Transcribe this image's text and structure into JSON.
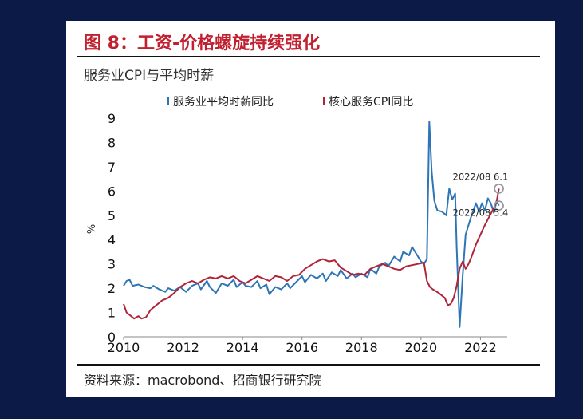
{
  "figure": {
    "title": "图 8：工资-价格螺旋持续强化",
    "chart_title": "服务业CPI与平均时薪",
    "source": "资料来源：macrobond、招商银行研究院"
  },
  "chart_data": {
    "type": "line",
    "title": "服务业CPI与平均时薪",
    "xlabel": "",
    "ylabel": "%",
    "xlim": [
      2010,
      2022.9
    ],
    "ylim": [
      0,
      9
    ],
    "x_ticks": [
      "2010",
      "2012",
      "2014",
      "2016",
      "2018",
      "2020",
      "2022"
    ],
    "y_ticks": [
      "0",
      "1",
      "2",
      "3",
      "4",
      "5",
      "6",
      "7",
      "8",
      "9"
    ],
    "legend_position": "top",
    "series": [
      {
        "name": "服务业平均时薪同比",
        "color": "#2e75b6",
        "points": [
          [
            2010.0,
            2.1
          ],
          [
            2010.1,
            2.3
          ],
          [
            2010.2,
            2.35
          ],
          [
            2010.3,
            2.1
          ],
          [
            2010.5,
            2.15
          ],
          [
            2010.7,
            2.05
          ],
          [
            2010.9,
            2.0
          ],
          [
            2011.0,
            2.1
          ],
          [
            2011.2,
            1.95
          ],
          [
            2011.4,
            1.85
          ],
          [
            2011.5,
            2.0
          ],
          [
            2011.7,
            1.9
          ],
          [
            2011.9,
            2.05
          ],
          [
            2012.1,
            1.85
          ],
          [
            2012.3,
            2.1
          ],
          [
            2012.5,
            2.2
          ],
          [
            2012.6,
            1.95
          ],
          [
            2012.8,
            2.3
          ],
          [
            2012.9,
            2.05
          ],
          [
            2013.1,
            1.8
          ],
          [
            2013.3,
            2.2
          ],
          [
            2013.5,
            2.1
          ],
          [
            2013.7,
            2.35
          ],
          [
            2013.8,
            2.05
          ],
          [
            2014.0,
            2.25
          ],
          [
            2014.1,
            2.1
          ],
          [
            2014.3,
            2.05
          ],
          [
            2014.5,
            2.3
          ],
          [
            2014.6,
            2.0
          ],
          [
            2014.8,
            2.15
          ],
          [
            2014.9,
            1.75
          ],
          [
            2015.1,
            2.05
          ],
          [
            2015.3,
            1.95
          ],
          [
            2015.5,
            2.2
          ],
          [
            2015.6,
            2.0
          ],
          [
            2015.8,
            2.25
          ],
          [
            2016.0,
            2.5
          ],
          [
            2016.1,
            2.25
          ],
          [
            2016.3,
            2.55
          ],
          [
            2016.5,
            2.4
          ],
          [
            2016.7,
            2.6
          ],
          [
            2016.8,
            2.3
          ],
          [
            2017.0,
            2.65
          ],
          [
            2017.2,
            2.5
          ],
          [
            2017.3,
            2.75
          ],
          [
            2017.5,
            2.4
          ],
          [
            2017.7,
            2.6
          ],
          [
            2017.8,
            2.45
          ],
          [
            2018.0,
            2.6
          ],
          [
            2018.2,
            2.45
          ],
          [
            2018.3,
            2.8
          ],
          [
            2018.5,
            2.6
          ],
          [
            2018.6,
            2.9
          ],
          [
            2018.8,
            3.05
          ],
          [
            2018.9,
            2.9
          ],
          [
            2019.1,
            3.3
          ],
          [
            2019.3,
            3.1
          ],
          [
            2019.4,
            3.5
          ],
          [
            2019.6,
            3.35
          ],
          [
            2019.7,
            3.7
          ],
          [
            2019.8,
            3.5
          ],
          [
            2020.0,
            3.1
          ],
          [
            2020.1,
            3.0
          ],
          [
            2020.2,
            3.2
          ],
          [
            2020.28,
            8.85
          ],
          [
            2020.36,
            6.8
          ],
          [
            2020.45,
            5.6
          ],
          [
            2020.55,
            5.2
          ],
          [
            2020.7,
            5.15
          ],
          [
            2020.85,
            5.0
          ],
          [
            2020.95,
            6.1
          ],
          [
            2021.05,
            5.65
          ],
          [
            2021.15,
            5.9
          ],
          [
            2021.2,
            3.7
          ],
          [
            2021.3,
            0.4
          ],
          [
            2021.4,
            2.5
          ],
          [
            2021.5,
            4.2
          ],
          [
            2021.6,
            4.6
          ],
          [
            2021.7,
            5.0
          ],
          [
            2021.85,
            5.5
          ],
          [
            2021.95,
            5.15
          ],
          [
            2022.05,
            5.5
          ],
          [
            2022.15,
            5.2
          ],
          [
            2022.25,
            5.7
          ],
          [
            2022.35,
            5.5
          ],
          [
            2022.45,
            5.1
          ],
          [
            2022.55,
            5.6
          ],
          [
            2022.62,
            5.4
          ]
        ]
      },
      {
        "name": "核心服务CPI同比",
        "color": "#b0243a",
        "points": [
          [
            2010.0,
            1.35
          ],
          [
            2010.1,
            1.0
          ],
          [
            2010.2,
            0.9
          ],
          [
            2010.35,
            0.75
          ],
          [
            2010.5,
            0.85
          ],
          [
            2010.6,
            0.75
          ],
          [
            2010.75,
            0.8
          ],
          [
            2010.9,
            1.1
          ],
          [
            2011.1,
            1.3
          ],
          [
            2011.3,
            1.5
          ],
          [
            2011.5,
            1.6
          ],
          [
            2011.7,
            1.8
          ],
          [
            2011.9,
            2.05
          ],
          [
            2012.1,
            2.2
          ],
          [
            2012.3,
            2.3
          ],
          [
            2012.5,
            2.2
          ],
          [
            2012.7,
            2.35
          ],
          [
            2012.9,
            2.45
          ],
          [
            2013.1,
            2.4
          ],
          [
            2013.3,
            2.5
          ],
          [
            2013.5,
            2.4
          ],
          [
            2013.7,
            2.5
          ],
          [
            2013.9,
            2.3
          ],
          [
            2014.1,
            2.2
          ],
          [
            2014.3,
            2.35
          ],
          [
            2014.5,
            2.5
          ],
          [
            2014.7,
            2.4
          ],
          [
            2014.9,
            2.3
          ],
          [
            2015.1,
            2.5
          ],
          [
            2015.3,
            2.45
          ],
          [
            2015.5,
            2.3
          ],
          [
            2015.7,
            2.5
          ],
          [
            2015.9,
            2.55
          ],
          [
            2016.1,
            2.8
          ],
          [
            2016.3,
            2.95
          ],
          [
            2016.5,
            3.1
          ],
          [
            2016.7,
            3.2
          ],
          [
            2016.9,
            3.1
          ],
          [
            2017.1,
            3.15
          ],
          [
            2017.3,
            2.85
          ],
          [
            2017.5,
            2.7
          ],
          [
            2017.7,
            2.55
          ],
          [
            2017.9,
            2.6
          ],
          [
            2018.1,
            2.55
          ],
          [
            2018.3,
            2.8
          ],
          [
            2018.5,
            2.9
          ],
          [
            2018.7,
            3.0
          ],
          [
            2018.9,
            2.9
          ],
          [
            2019.1,
            2.8
          ],
          [
            2019.3,
            2.75
          ],
          [
            2019.5,
            2.9
          ],
          [
            2019.7,
            2.95
          ],
          [
            2019.9,
            3.0
          ],
          [
            2020.1,
            3.05
          ],
          [
            2020.2,
            2.3
          ],
          [
            2020.3,
            2.05
          ],
          [
            2020.4,
            1.95
          ],
          [
            2020.6,
            1.8
          ],
          [
            2020.8,
            1.6
          ],
          [
            2020.9,
            1.3
          ],
          [
            2021.0,
            1.35
          ],
          [
            2021.1,
            1.6
          ],
          [
            2021.2,
            2.1
          ],
          [
            2021.3,
            2.8
          ],
          [
            2021.4,
            3.1
          ],
          [
            2021.5,
            2.8
          ],
          [
            2021.6,
            3.0
          ],
          [
            2021.7,
            3.3
          ],
          [
            2021.85,
            3.8
          ],
          [
            2022.0,
            4.2
          ],
          [
            2022.15,
            4.6
          ],
          [
            2022.3,
            4.95
          ],
          [
            2022.45,
            5.3
          ],
          [
            2022.55,
            5.6
          ],
          [
            2022.62,
            6.1
          ]
        ]
      }
    ],
    "annotations": [
      {
        "label": "2022/08",
        "value": "6.1",
        "x": 2022.62,
        "y": 6.1
      },
      {
        "label": "2022/08",
        "value": "5.4",
        "x": 2022.62,
        "y": 5.4
      }
    ]
  }
}
